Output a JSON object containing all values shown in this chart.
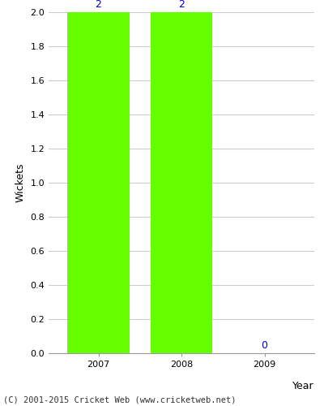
{
  "categories": [
    "2007",
    "2008",
    "2009"
  ],
  "values": [
    2,
    2,
    0
  ],
  "bar_color": "#66ff00",
  "bar_edge_color": "#66ff00",
  "label_color": "#0000cc",
  "xlabel": "Year",
  "ylabel": "Wickets",
  "ylim": [
    0.0,
    2.0
  ],
  "yticks": [
    0.0,
    0.2,
    0.4,
    0.6,
    0.8,
    1.0,
    1.2,
    1.4,
    1.6,
    1.8,
    2.0
  ],
  "grid_color": "#cccccc",
  "background_color": "#ffffff",
  "plot_bg_color": "#ffffff",
  "bar_width": 0.75,
  "annotation_fontsize": 9,
  "axis_label_fontsize": 9,
  "tick_label_fontsize": 8,
  "footnote": "(C) 2001-2015 Cricket Web (www.cricketweb.net)",
  "footnote_fontsize": 7.5
}
